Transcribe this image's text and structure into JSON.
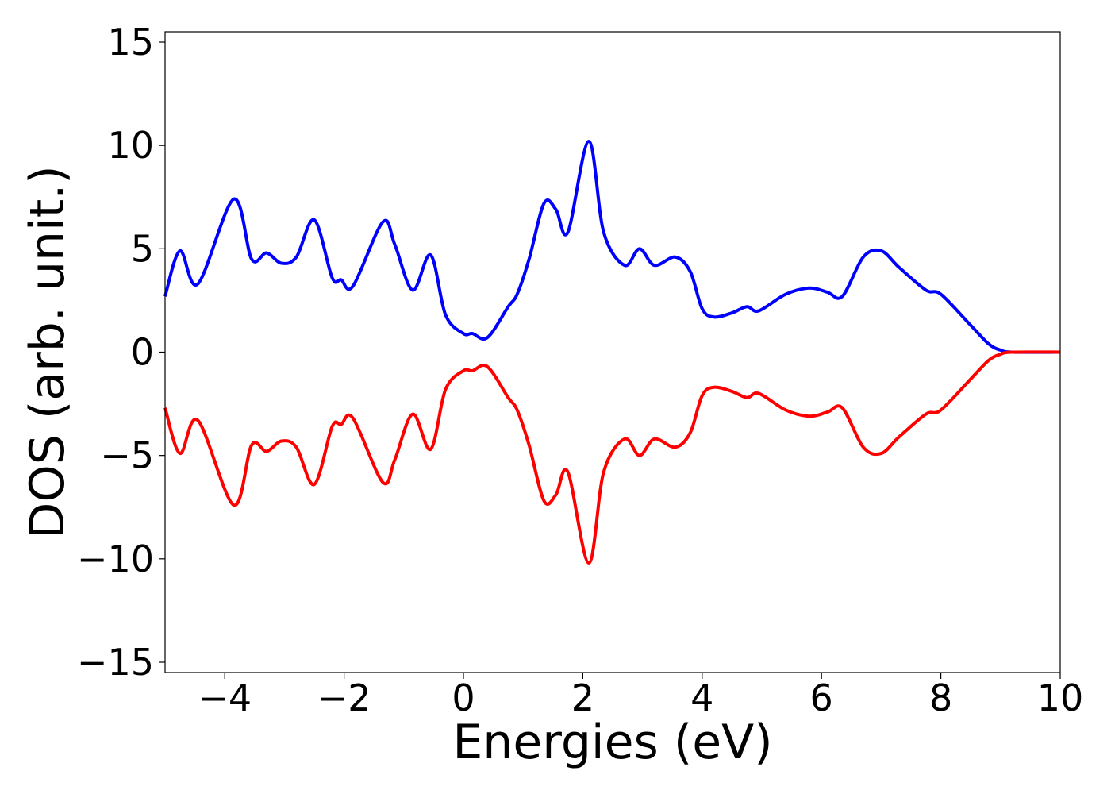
{
  "chart_data": {
    "type": "line",
    "title": "",
    "xlabel": "Energies (eV)",
    "ylabel": "DOS (arb. unit.)",
    "xlim": [
      -5,
      10
    ],
    "ylim": [
      -15.5,
      15.5
    ],
    "xticks": [
      -4,
      -2,
      0,
      2,
      4,
      6,
      8,
      10
    ],
    "xtick_labels": [
      "−4",
      "−2",
      "0",
      "2",
      "4",
      "6",
      "8",
      "10"
    ],
    "yticks": [
      15,
      10,
      5,
      0,
      -5,
      -10,
      -15
    ],
    "ytick_labels": [
      "15",
      "10",
      "5",
      "0",
      "−5",
      "−10",
      "−15"
    ],
    "grid": false,
    "series": [
      {
        "color": "#0000ff",
        "x": [
          -5.0,
          -4.75,
          -4.45,
          -3.85,
          -3.55,
          -3.3,
          -3.05,
          -2.8,
          -2.5,
          -2.2,
          -2.05,
          -1.85,
          -1.35,
          -1.15,
          -0.85,
          -0.55,
          -0.3,
          0.0,
          0.15,
          0.4,
          0.75,
          0.9,
          1.1,
          1.35,
          1.55,
          1.75,
          2.1,
          2.35,
          2.7,
          2.95,
          3.2,
          3.55,
          3.8,
          4.0,
          4.2,
          4.5,
          4.75,
          4.95,
          5.4,
          5.8,
          6.1,
          6.35,
          6.7,
          7.0,
          7.3,
          7.75,
          8.0,
          8.5,
          8.8,
          9.0,
          9.2,
          10.0
        ],
        "y": [
          2.7,
          4.9,
          3.3,
          7.4,
          4.5,
          4.8,
          4.3,
          4.6,
          6.4,
          3.6,
          3.5,
          3.2,
          6.3,
          5.2,
          3.0,
          4.7,
          1.8,
          0.9,
          0.9,
          0.7,
          2.2,
          2.8,
          4.5,
          7.2,
          6.9,
          5.8,
          10.2,
          5.8,
          4.2,
          5.0,
          4.2,
          4.6,
          3.9,
          2.1,
          1.7,
          1.9,
          2.2,
          2.0,
          2.8,
          3.1,
          2.9,
          2.7,
          4.6,
          4.9,
          4.1,
          3.0,
          2.8,
          1.3,
          0.4,
          0.1,
          0.0,
          0.0
        ]
      },
      {
        "color": "#ff0000",
        "x": [
          -5.0,
          -4.75,
          -4.45,
          -3.85,
          -3.55,
          -3.3,
          -3.05,
          -2.8,
          -2.5,
          -2.2,
          -2.05,
          -1.85,
          -1.35,
          -1.15,
          -0.85,
          -0.55,
          -0.3,
          0.0,
          0.15,
          0.4,
          0.75,
          0.9,
          1.1,
          1.35,
          1.55,
          1.75,
          2.1,
          2.35,
          2.7,
          2.95,
          3.2,
          3.55,
          3.8,
          4.0,
          4.2,
          4.5,
          4.75,
          4.95,
          5.4,
          5.8,
          6.1,
          6.35,
          6.7,
          7.0,
          7.3,
          7.75,
          8.0,
          8.5,
          8.8,
          9.0,
          9.2,
          10.0
        ],
        "y": [
          -2.7,
          -4.9,
          -3.3,
          -7.4,
          -4.5,
          -4.8,
          -4.3,
          -4.6,
          -6.4,
          -3.6,
          -3.5,
          -3.2,
          -6.3,
          -5.2,
          -3.0,
          -4.7,
          -1.8,
          -0.9,
          -0.9,
          -0.7,
          -2.2,
          -2.8,
          -4.5,
          -7.2,
          -6.9,
          -5.8,
          -10.2,
          -5.8,
          -4.2,
          -5.0,
          -4.2,
          -4.6,
          -3.9,
          -2.1,
          -1.7,
          -1.9,
          -2.2,
          -2.0,
          -2.8,
          -3.1,
          -2.9,
          -2.7,
          -4.6,
          -4.9,
          -4.1,
          -3.0,
          -2.8,
          -1.3,
          -0.4,
          -0.1,
          0.0,
          0.0
        ]
      }
    ]
  }
}
